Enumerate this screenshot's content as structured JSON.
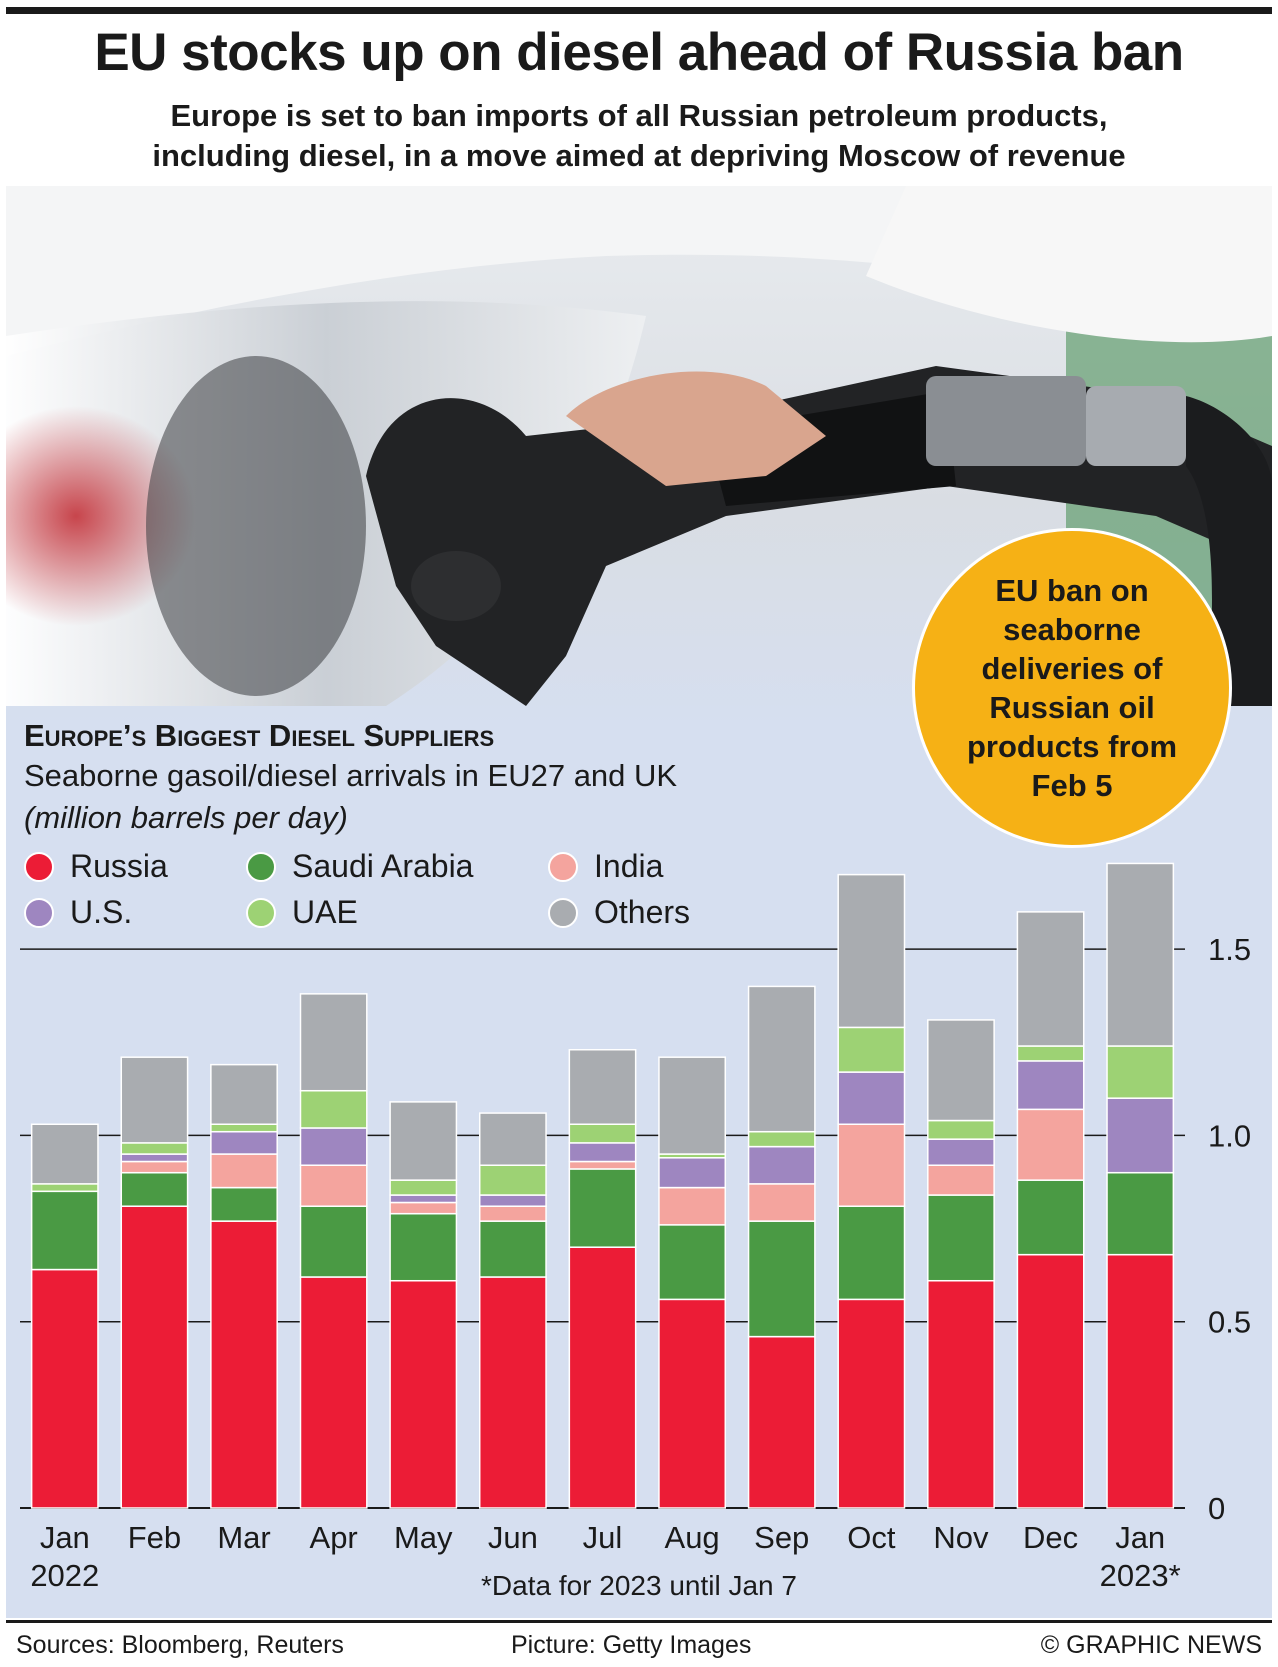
{
  "header": {
    "title": "EU stocks up on diesel ahead of Russia ban",
    "subtitle_line1": "Europe is set to ban imports of all Russian petroleum products,",
    "subtitle_line2": "including diesel, in a move aimed at depriving Moscow of revenue"
  },
  "callout": {
    "text": "EU ban on seaborne deliveries of Russian oil products from Feb 5",
    "color": "#f6b115"
  },
  "chart_data": {
    "type": "bar",
    "stacked": true,
    "title": "Europe’s Biggest Diesel Suppliers",
    "subtitle": "Seaborne gasoil/diesel arrivals in EU27 and UK",
    "units": "(million barrels per day)",
    "categories": [
      "Jan 2022",
      "Feb",
      "Mar",
      "Apr",
      "May",
      "Jun",
      "Jul",
      "Aug",
      "Sep",
      "Oct",
      "Nov",
      "Dec",
      "Jan 2023*"
    ],
    "category_lines": [
      [
        "Jan",
        "2022"
      ],
      [
        "Feb"
      ],
      [
        "Mar"
      ],
      [
        "Apr"
      ],
      [
        "May"
      ],
      [
        "Jun"
      ],
      [
        "Jul"
      ],
      [
        "Aug"
      ],
      [
        "Sep"
      ],
      [
        "Oct"
      ],
      [
        "Nov"
      ],
      [
        "Dec"
      ],
      [
        "Jan",
        "2023*"
      ]
    ],
    "series": [
      {
        "name": "Russia",
        "color": "#ec1c36",
        "values": [
          0.64,
          0.81,
          0.77,
          0.62,
          0.61,
          0.62,
          0.7,
          0.56,
          0.46,
          0.56,
          0.61,
          0.68,
          0.68
        ]
      },
      {
        "name": "Saudi Arabia",
        "color": "#4a9a44",
        "values": [
          0.21,
          0.09,
          0.09,
          0.19,
          0.18,
          0.15,
          0.21,
          0.2,
          0.31,
          0.25,
          0.23,
          0.2,
          0.22
        ]
      },
      {
        "name": "India",
        "color": "#f4a49e",
        "values": [
          0.0,
          0.03,
          0.09,
          0.11,
          0.03,
          0.04,
          0.02,
          0.1,
          0.1,
          0.22,
          0.08,
          0.19,
          0.0
        ]
      },
      {
        "name": "U.S.",
        "color": "#9e86c0",
        "values": [
          0.0,
          0.02,
          0.06,
          0.1,
          0.02,
          0.03,
          0.05,
          0.08,
          0.1,
          0.14,
          0.07,
          0.13,
          0.2
        ]
      },
      {
        "name": "UAE",
        "color": "#9dd274",
        "values": [
          0.02,
          0.03,
          0.02,
          0.1,
          0.04,
          0.08,
          0.05,
          0.01,
          0.04,
          0.12,
          0.05,
          0.04,
          0.14
        ]
      },
      {
        "name": "Others",
        "color": "#a9acb0",
        "values": [
          0.16,
          0.23,
          0.16,
          0.26,
          0.21,
          0.14,
          0.2,
          0.26,
          0.39,
          0.41,
          0.27,
          0.36,
          0.49
        ]
      }
    ],
    "ylim": [
      0,
      1.75
    ],
    "yticks": [
      0,
      0.5,
      1.0,
      1.5
    ],
    "ytick_labels": [
      "0",
      "0.5",
      "1.0",
      "1.5"
    ],
    "gridlines": true,
    "legend_position": "top-left",
    "footnote": "*Data for 2023 until Jan 7"
  },
  "footer": {
    "sources": "Sources: Bloomberg, Reuters",
    "picture": "Picture: Getty Images",
    "credit": "© GRAPHIC NEWS"
  }
}
